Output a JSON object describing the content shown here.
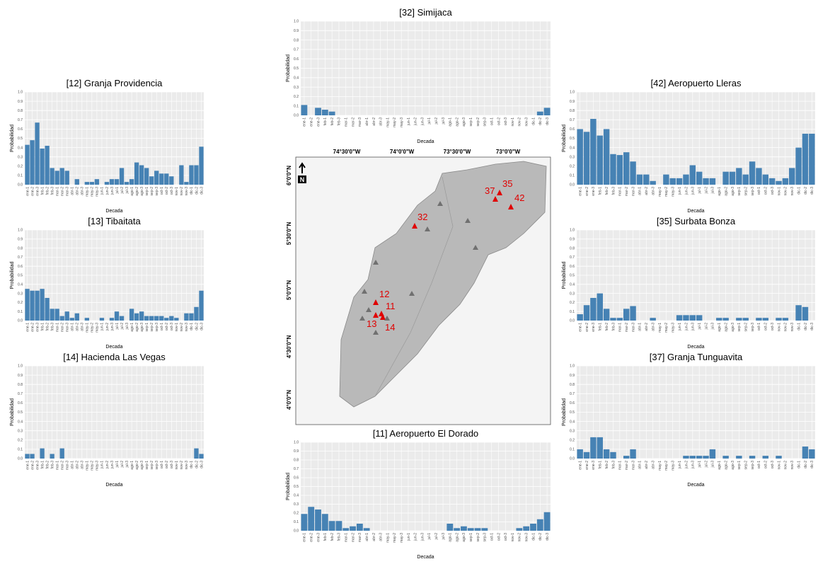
{
  "chart_data": [
    {
      "type": "bar",
      "title": "[32] Simijaca",
      "xlabel": "Decada",
      "ylabel": "Probabilidad",
      "color": "#4682b4",
      "grid": true,
      "categories": [
        "ene-1",
        "ene-2",
        "ene-3",
        "feb-1",
        "feb-2",
        "feb-3",
        "mar-1",
        "mar-2",
        "mar-3",
        "abr-1",
        "abr-2",
        "abr-3",
        "may-1",
        "may-2",
        "may-3",
        "jun-1",
        "jun-2",
        "jun-3",
        "jul-1",
        "jul-2",
        "jul-3",
        "ago-1",
        "ago-2",
        "ago-3",
        "sep-1",
        "sep-2",
        "sep-3",
        "oct-1",
        "oct-2",
        "oct-3",
        "nov-1",
        "nov-2",
        "nov-3",
        "dic-1",
        "dic-2",
        "dic-3"
      ],
      "values": [
        0.11,
        0,
        0.08,
        0.06,
        0.04,
        0,
        0,
        0,
        0,
        0,
        0,
        0,
        0,
        0,
        0,
        0,
        0,
        0,
        0,
        0,
        0,
        0,
        0,
        0,
        0,
        0,
        0,
        0,
        0,
        0,
        0,
        0,
        0,
        0,
        0.04,
        0.08
      ],
      "ylim": [
        0,
        1
      ],
      "yticks": [
        {
          "value": 0,
          "label": "0.0"
        },
        0.1,
        0.2,
        0.3,
        0.4,
        0.5,
        0.6,
        0.7,
        0.8,
        0.9,
        {
          "value": 1,
          "label": "1.0"
        }
      ]
    },
    {
      "type": "bar",
      "title": "[12] Granja Providencia",
      "xlabel": "Decada",
      "ylabel": "Probabilidad",
      "color": "#4682b4",
      "grid": true,
      "categories": [
        "ene-1",
        "ene-2",
        "ene-3",
        "feb-1",
        "feb-2",
        "feb-3",
        "mar-1",
        "mar-2",
        "mar-3",
        "abr-1",
        "abr-2",
        "abr-3",
        "may-1",
        "may-2",
        "may-3",
        "jun-1",
        "jun-2",
        "jun-3",
        "jul-1",
        "jul-2",
        "jul-3",
        "ago-1",
        "ago-2",
        "ago-3",
        "sep-1",
        "sep-2",
        "sep-3",
        "oct-1",
        "oct-2",
        "oct-3",
        "nov-1",
        "nov-2",
        "nov-3",
        "dic-1",
        "dic-2",
        "dic-3"
      ],
      "values": [
        0.43,
        0.48,
        0.67,
        0.39,
        0.42,
        0.18,
        0.15,
        0.18,
        0.15,
        0,
        0.06,
        0,
        0.03,
        0.03,
        0.06,
        0,
        0.03,
        0.06,
        0.06,
        0.18,
        0.03,
        0.06,
        0.24,
        0.21,
        0.18,
        0.09,
        0.15,
        0.12,
        0.12,
        0.09,
        0,
        0.21,
        0.03,
        0.21,
        0.21,
        0.41
      ],
      "ylim": [
        0,
        1
      ],
      "yticks": [
        {
          "value": 0,
          "label": "0.0"
        },
        0.1,
        0.2,
        0.3,
        0.4,
        0.5,
        0.6,
        0.7,
        0.8,
        0.9,
        {
          "value": 1,
          "label": "1.0"
        }
      ]
    },
    {
      "type": "bar",
      "title": "[42] Aeropuerto Lleras",
      "xlabel": "Decada",
      "ylabel": "Probabilidad",
      "color": "#4682b4",
      "grid": true,
      "categories": [
        "ene-1",
        "ene-2",
        "ene-3",
        "feb-1",
        "feb-2",
        "feb-3",
        "mar-1",
        "mar-2",
        "mar-3",
        "abr-1",
        "abr-2",
        "abr-3",
        "may-1",
        "may-2",
        "may-3",
        "jun-1",
        "jun-2",
        "jun-3",
        "jul-1",
        "jul-2",
        "jul-3",
        "ago-1",
        "ago-2",
        "ago-3",
        "sep-1",
        "sep-2",
        "sep-3",
        "oct-1",
        "oct-2",
        "oct-3",
        "nov-1",
        "nov-2",
        "nov-3",
        "dic-1",
        "dic-2",
        "dic-3"
      ],
      "values": [
        0.6,
        0.57,
        0.71,
        0.53,
        0.6,
        0.33,
        0.32,
        0.35,
        0.25,
        0.11,
        0.11,
        0.04,
        0,
        0.11,
        0.07,
        0.07,
        0.11,
        0.21,
        0.14,
        0.07,
        0.07,
        0,
        0.14,
        0.14,
        0.18,
        0.11,
        0.25,
        0.18,
        0.11,
        0.07,
        0.04,
        0.07,
        0.18,
        0.4,
        0.55,
        0.55
      ],
      "ylim": [
        0,
        1
      ],
      "yticks": [
        {
          "value": 0,
          "label": "0.0"
        },
        0.1,
        0.2,
        0.3,
        0.4,
        0.5,
        0.6,
        0.7,
        0.8,
        0.9,
        {
          "value": 1,
          "label": "1.0"
        }
      ]
    },
    {
      "type": "bar",
      "title": "[13] Tibaitata",
      "xlabel": "Decada",
      "ylabel": "Probabilidad",
      "color": "#4682b4",
      "grid": true,
      "categories": [
        "ene-1",
        "ene-2",
        "ene-3",
        "feb-1",
        "feb-2",
        "feb-3",
        "mar-1",
        "mar-2",
        "mar-3",
        "abr-1",
        "abr-2",
        "abr-3",
        "may-1",
        "may-2",
        "may-3",
        "jun-1",
        "jun-2",
        "jun-3",
        "jul-1",
        "jul-2",
        "jul-3",
        "ago-1",
        "ago-2",
        "ago-3",
        "sep-1",
        "sep-2",
        "sep-3",
        "oct-1",
        "oct-2",
        "oct-3",
        "nov-1",
        "nov-2",
        "nov-3",
        "dic-1",
        "dic-2",
        "dic-3"
      ],
      "values": [
        0.35,
        0.33,
        0.33,
        0.35,
        0.25,
        0.13,
        0.13,
        0.05,
        0.1,
        0.03,
        0.08,
        0,
        0.03,
        0,
        0,
        0.03,
        0,
        0.03,
        0.1,
        0.05,
        0,
        0.13,
        0.08,
        0.1,
        0.05,
        0.05,
        0.05,
        0.05,
        0.03,
        0.05,
        0.03,
        0,
        0.08,
        0.08,
        0.15,
        0.33
      ],
      "ylim": [
        0,
        1
      ],
      "yticks": [
        {
          "value": 0,
          "label": "0.0"
        },
        0.1,
        0.2,
        0.3,
        0.4,
        0.5,
        0.6,
        0.7,
        0.8,
        0.9,
        {
          "value": 1,
          "label": "1.0"
        }
      ]
    },
    {
      "type": "bar",
      "title": "[35] Surbata Bonza",
      "xlabel": "Decada",
      "ylabel": "Probabilidad",
      "color": "#4682b4",
      "grid": true,
      "categories": [
        "ene-1",
        "ene-2",
        "ene-3",
        "feb-1",
        "feb-2",
        "feb-3",
        "mar-1",
        "mar-2",
        "mar-3",
        "abr-1",
        "abr-2",
        "abr-3",
        "may-1",
        "may-2",
        "may-3",
        "jun-1",
        "jun-2",
        "jun-3",
        "jul-1",
        "jul-2",
        "jul-3",
        "ago-1",
        "ago-2",
        "ago-3",
        "sep-1",
        "sep-2",
        "sep-3",
        "oct-1",
        "oct-2",
        "oct-3",
        "nov-1",
        "nov-2",
        "nov-3",
        "dic-1",
        "dic-2",
        "dic-3"
      ],
      "values": [
        0.07,
        0.17,
        0.25,
        0.3,
        0.13,
        0.03,
        0.03,
        0.13,
        0.16,
        0,
        0,
        0.03,
        0,
        0,
        0,
        0.06,
        0.06,
        0.06,
        0.06,
        0,
        0,
        0.03,
        0.03,
        0,
        0.03,
        0.03,
        0,
        0.03,
        0.03,
        0,
        0.03,
        0.03,
        0,
        0.17,
        0.15,
        0
      ],
      "ylim": [
        0,
        1
      ],
      "yticks": [
        {
          "value": 0,
          "label": "0.0"
        },
        0.1,
        0.2,
        0.3,
        0.4,
        0.5,
        0.6,
        0.7,
        0.8,
        0.9,
        {
          "value": 1,
          "label": "1.0"
        }
      ]
    },
    {
      "type": "bar",
      "title": "[14] Hacienda Las Vegas",
      "xlabel": "Decada",
      "ylabel": "Probabilidad",
      "color": "#4682b4",
      "grid": true,
      "categories": [
        "ene-1",
        "ene-2",
        "ene-3",
        "feb-1",
        "feb-2",
        "feb-3",
        "mar-1",
        "mar-2",
        "mar-3",
        "abr-1",
        "abr-2",
        "abr-3",
        "may-1",
        "may-2",
        "may-3",
        "jun-1",
        "jun-2",
        "jun-3",
        "jul-1",
        "jul-2",
        "jul-3",
        "ago-1",
        "ago-2",
        "ago-3",
        "sep-1",
        "sep-2",
        "sep-3",
        "oct-1",
        "oct-2",
        "oct-3",
        "nov-1",
        "nov-2",
        "nov-3",
        "dic-1",
        "dic-2",
        "dic-3"
      ],
      "values": [
        0.05,
        0.05,
        0,
        0.11,
        0,
        0.05,
        0,
        0.11,
        0,
        0,
        0,
        0,
        0,
        0,
        0,
        0,
        0,
        0,
        0,
        0,
        0,
        0,
        0,
        0,
        0,
        0,
        0,
        0,
        0,
        0,
        0,
        0,
        0,
        0,
        0.11,
        0.05
      ],
      "ylim": [
        0,
        1
      ],
      "yticks": [
        {
          "value": 0,
          "label": "0.0"
        },
        0.1,
        0.2,
        0.3,
        0.4,
        0.5,
        0.6,
        0.7,
        0.8,
        0.9,
        {
          "value": 1,
          "label": "1.0"
        }
      ]
    },
    {
      "type": "bar",
      "title": "[37] Granja Tunguavita",
      "xlabel": "Decada",
      "ylabel": "Probabilidad",
      "color": "#4682b4",
      "grid": true,
      "categories": [
        "ene-1",
        "ene-2",
        "ene-3",
        "feb-1",
        "feb-2",
        "feb-3",
        "mar-1",
        "mar-2",
        "mar-3",
        "abr-1",
        "abr-2",
        "abr-3",
        "may-1",
        "may-2",
        "may-3",
        "jun-1",
        "jun-2",
        "jun-3",
        "jul-1",
        "jul-2",
        "jul-3",
        "ago-1",
        "ago-2",
        "ago-3",
        "sep-1",
        "sep-2",
        "sep-3",
        "oct-1",
        "oct-2",
        "oct-3",
        "nov-1",
        "nov-2",
        "nov-3",
        "dic-1",
        "dic-2",
        "dic-3"
      ],
      "values": [
        0.1,
        0.07,
        0.23,
        0.23,
        0.1,
        0.07,
        0,
        0.03,
        0.1,
        0,
        0,
        0,
        0,
        0,
        0,
        0,
        0.03,
        0.03,
        0.03,
        0.03,
        0.1,
        0,
        0.03,
        0,
        0.03,
        0,
        0.03,
        0,
        0.03,
        0,
        0.03,
        0,
        0,
        0,
        0.13,
        0.1
      ],
      "ylim": [
        0,
        1
      ],
      "yticks": [
        {
          "value": 0,
          "label": "0.0"
        },
        0.1,
        0.2,
        0.3,
        0.4,
        0.5,
        0.6,
        0.7,
        0.8,
        0.9,
        {
          "value": 1,
          "label": "1.0"
        }
      ]
    },
    {
      "type": "bar",
      "title": "[11] Aeropuerto El Dorado",
      "xlabel": "Decada",
      "ylabel": "Probabilidad",
      "color": "#4682b4",
      "grid": true,
      "categories": [
        "ene-1",
        "ene-2",
        "ene-3",
        "feb-1",
        "feb-2",
        "feb-3",
        "mar-1",
        "mar-2",
        "mar-3",
        "abr-1",
        "abr-2",
        "abr-3",
        "may-1",
        "may-2",
        "may-3",
        "jun-1",
        "jun-2",
        "jun-3",
        "jul-1",
        "jul-2",
        "jul-3",
        "ago-1",
        "ago-2",
        "ago-3",
        "sep-1",
        "sep-2",
        "sep-3",
        "oct-1",
        "oct-2",
        "oct-3",
        "nov-1",
        "nov-2",
        "nov-3",
        "dic-1",
        "dic-2",
        "dic-3"
      ],
      "values": [
        0.19,
        0.27,
        0.24,
        0.19,
        0.11,
        0.11,
        0.03,
        0.05,
        0.08,
        0.03,
        0,
        0,
        0,
        0,
        0,
        0,
        0,
        0,
        0,
        0,
        0,
        0.08,
        0.03,
        0.05,
        0.03,
        0.03,
        0.03,
        0,
        0,
        0,
        0,
        0.03,
        0.05,
        0.08,
        0.13,
        0.21
      ],
      "ylim": [
        0,
        1
      ],
      "yticks": [
        {
          "value": 0,
          "label": "0.0"
        },
        0.1,
        0.2,
        0.3,
        0.4,
        0.5,
        0.6,
        0.7,
        0.8,
        0.9,
        {
          "value": 1,
          "label": "1.0"
        }
      ]
    }
  ],
  "map": {
    "lon_labels": [
      "74°30'0\"W",
      "74°0'0\"W",
      "73°30'0\"W",
      "73°0'0\"W"
    ],
    "lat_labels": [
      "6°0'0\"N",
      "5°30'0\"N",
      "5°0'0\"N",
      "4°30'0\"N",
      "4°0'0\"N"
    ],
    "north": "N",
    "stations": [
      "12",
      "11",
      "13",
      "14",
      "32",
      "37",
      "35",
      "42"
    ]
  }
}
